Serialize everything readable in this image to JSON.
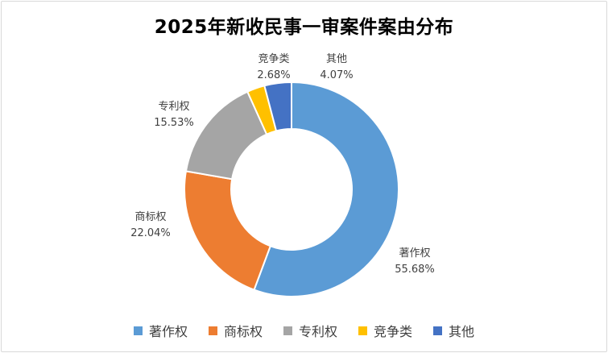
{
  "chart_data": {
    "type": "pie",
    "title": "2025年新收民事一审案件案由分布",
    "donut": true,
    "slices": [
      {
        "label": "著作权",
        "value": 55.68,
        "display": "55.68%",
        "color": "#5b9bd5"
      },
      {
        "label": "商标权",
        "value": 22.04,
        "display": "22.04%",
        "color": "#ed7d31"
      },
      {
        "label": "专利权",
        "value": 15.53,
        "display": "15.53%",
        "color": "#a5a5a5"
      },
      {
        "label": "竞争类",
        "value": 2.68,
        "display": "2.68%",
        "color": "#ffc000"
      },
      {
        "label": "其他",
        "value": 4.07,
        "display": "4.07%",
        "color": "#4472c4"
      }
    ],
    "legend_position": "bottom"
  }
}
